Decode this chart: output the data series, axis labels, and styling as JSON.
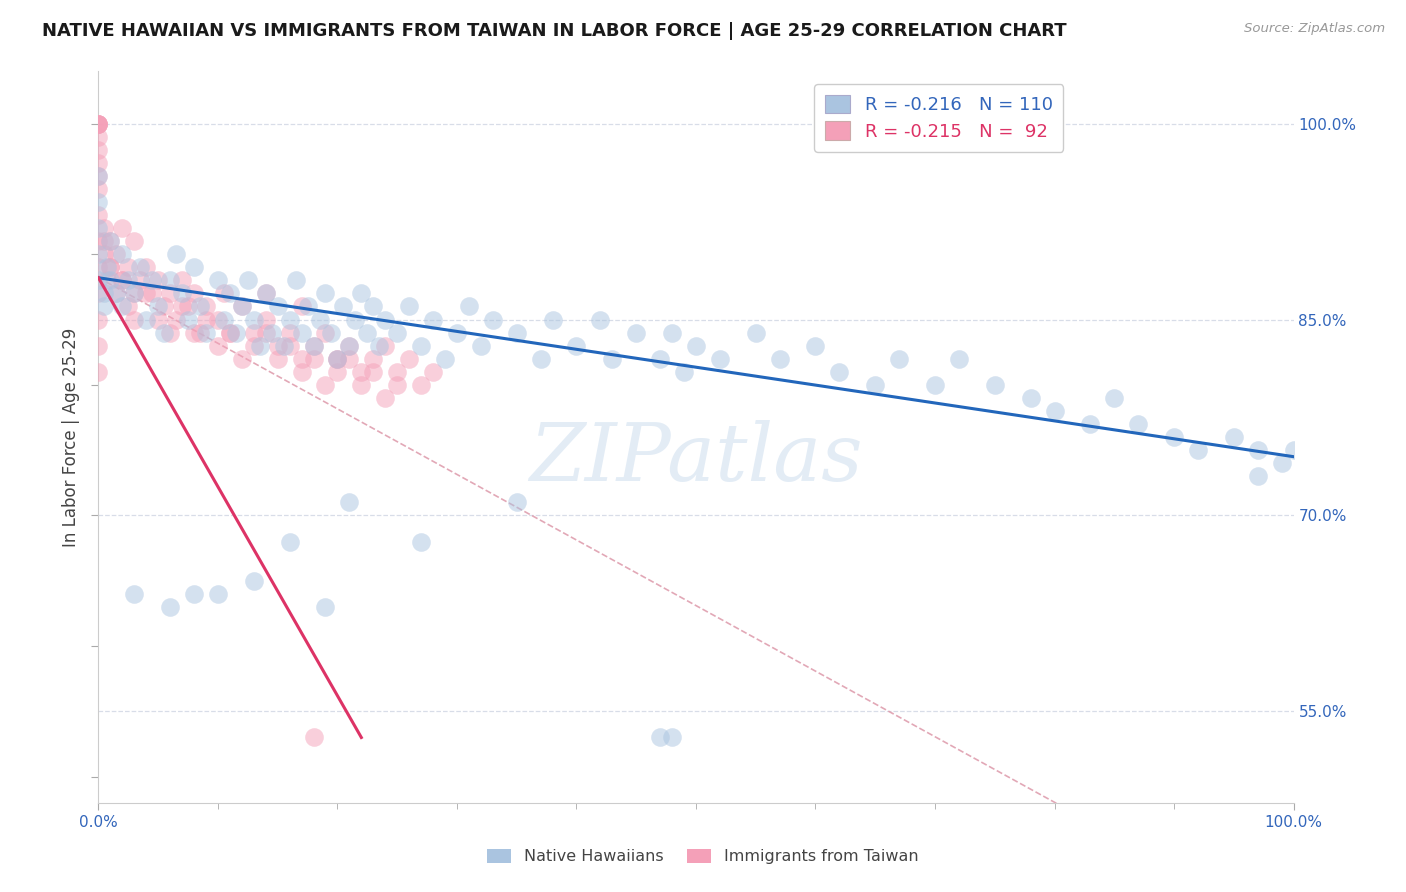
{
  "title": "NATIVE HAWAIIAN VS IMMIGRANTS FROM TAIWAN IN LABOR FORCE | AGE 25-29 CORRELATION CHART",
  "source": "Source: ZipAtlas.com",
  "ylabel": "In Labor Force | Age 25-29",
  "y_tick_labels_right": [
    "100.0%",
    "85.0%",
    "70.0%",
    "55.0%"
  ],
  "y_tick_values_right": [
    1.0,
    0.85,
    0.7,
    0.55
  ],
  "watermark_text": "ZIPatlas",
  "blue_color": "#aac4e0",
  "pink_color": "#f4a0b8",
  "blue_line_color": "#2266bb",
  "pink_line_color": "#dd3366",
  "dashed_line_color": "#dd99aa",
  "grid_color": "#d8dde8",
  "background_color": "#ffffff",
  "xlim": [
    0.0,
    1.0
  ],
  "ylim": [
    0.48,
    1.04
  ],
  "blue_scatter_x": [
    0.0,
    0.0,
    0.0,
    0.0,
    0.0,
    0.005,
    0.005,
    0.007,
    0.01,
    0.01,
    0.015,
    0.02,
    0.02,
    0.025,
    0.03,
    0.035,
    0.04,
    0.045,
    0.05,
    0.055,
    0.06,
    0.065,
    0.07,
    0.075,
    0.08,
    0.085,
    0.09,
    0.1,
    0.105,
    0.11,
    0.115,
    0.12,
    0.125,
    0.13,
    0.135,
    0.14,
    0.145,
    0.15,
    0.155,
    0.16,
    0.165,
    0.17,
    0.175,
    0.18,
    0.185,
    0.19,
    0.195,
    0.2,
    0.205,
    0.21,
    0.215,
    0.22,
    0.225,
    0.23,
    0.235,
    0.24,
    0.25,
    0.26,
    0.27,
    0.28,
    0.29,
    0.3,
    0.31,
    0.32,
    0.33,
    0.35,
    0.37,
    0.38,
    0.4,
    0.42,
    0.43,
    0.45,
    0.47,
    0.48,
    0.49,
    0.5,
    0.52,
    0.55,
    0.57,
    0.6,
    0.62,
    0.65,
    0.67,
    0.7,
    0.72,
    0.75,
    0.78,
    0.8,
    0.83,
    0.85,
    0.87,
    0.9,
    0.92,
    0.95,
    0.97,
    0.97,
    0.99,
    1.0,
    0.47,
    0.48,
    0.35,
    0.27,
    0.21,
    0.19,
    0.16,
    0.13,
    0.1,
    0.08,
    0.06,
    0.03
  ],
  "blue_scatter_y": [
    0.9,
    0.92,
    0.94,
    0.96,
    0.88,
    0.87,
    0.86,
    0.89,
    0.91,
    0.88,
    0.87,
    0.9,
    0.86,
    0.88,
    0.87,
    0.89,
    0.85,
    0.88,
    0.86,
    0.84,
    0.88,
    0.9,
    0.87,
    0.85,
    0.89,
    0.86,
    0.84,
    0.88,
    0.85,
    0.87,
    0.84,
    0.86,
    0.88,
    0.85,
    0.83,
    0.87,
    0.84,
    0.86,
    0.83,
    0.85,
    0.88,
    0.84,
    0.86,
    0.83,
    0.85,
    0.87,
    0.84,
    0.82,
    0.86,
    0.83,
    0.85,
    0.87,
    0.84,
    0.86,
    0.83,
    0.85,
    0.84,
    0.86,
    0.83,
    0.85,
    0.82,
    0.84,
    0.86,
    0.83,
    0.85,
    0.84,
    0.82,
    0.85,
    0.83,
    0.85,
    0.82,
    0.84,
    0.82,
    0.84,
    0.81,
    0.83,
    0.82,
    0.84,
    0.82,
    0.83,
    0.81,
    0.8,
    0.82,
    0.8,
    0.82,
    0.8,
    0.79,
    0.78,
    0.77,
    0.79,
    0.77,
    0.76,
    0.75,
    0.76,
    0.75,
    0.73,
    0.74,
    0.75,
    0.53,
    0.53,
    0.71,
    0.68,
    0.71,
    0.63,
    0.68,
    0.65,
    0.64,
    0.64,
    0.63,
    0.64
  ],
  "pink_scatter_x": [
    0.0,
    0.0,
    0.0,
    0.0,
    0.0,
    0.0,
    0.0,
    0.0,
    0.0,
    0.0,
    0.0,
    0.0,
    0.0,
    0.0,
    0.0,
    0.0,
    0.0,
    0.005,
    0.005,
    0.007,
    0.01,
    0.01,
    0.015,
    0.02,
    0.02,
    0.025,
    0.03,
    0.03,
    0.035,
    0.04,
    0.045,
    0.05,
    0.055,
    0.06,
    0.065,
    0.07,
    0.075,
    0.08,
    0.085,
    0.09,
    0.1,
    0.105,
    0.11,
    0.12,
    0.13,
    0.14,
    0.15,
    0.16,
    0.17,
    0.18,
    0.19,
    0.2,
    0.21,
    0.22,
    0.23,
    0.24,
    0.25,
    0.26,
    0.27,
    0.28,
    0.005,
    0.01,
    0.015,
    0.02,
    0.025,
    0.03,
    0.04,
    0.05,
    0.06,
    0.07,
    0.08,
    0.09,
    0.1,
    0.11,
    0.12,
    0.13,
    0.14,
    0.15,
    0.16,
    0.17,
    0.18,
    0.19,
    0.2,
    0.21,
    0.22,
    0.23,
    0.24,
    0.25,
    0.14,
    0.17,
    0.18,
    0.2
  ],
  "pink_scatter_y": [
    1.0,
    1.0,
    1.0,
    1.0,
    1.0,
    0.99,
    0.98,
    0.97,
    0.96,
    0.95,
    0.93,
    0.91,
    0.89,
    0.87,
    0.85,
    0.83,
    0.81,
    0.9,
    0.92,
    0.88,
    0.91,
    0.89,
    0.9,
    0.88,
    0.92,
    0.89,
    0.87,
    0.91,
    0.88,
    0.89,
    0.87,
    0.88,
    0.86,
    0.87,
    0.85,
    0.88,
    0.86,
    0.87,
    0.84,
    0.86,
    0.85,
    0.87,
    0.84,
    0.86,
    0.84,
    0.85,
    0.83,
    0.84,
    0.82,
    0.83,
    0.84,
    0.82,
    0.83,
    0.81,
    0.82,
    0.83,
    0.81,
    0.82,
    0.8,
    0.81,
    0.91,
    0.89,
    0.87,
    0.88,
    0.86,
    0.85,
    0.87,
    0.85,
    0.84,
    0.86,
    0.84,
    0.85,
    0.83,
    0.84,
    0.82,
    0.83,
    0.84,
    0.82,
    0.83,
    0.81,
    0.82,
    0.8,
    0.81,
    0.82,
    0.8,
    0.81,
    0.79,
    0.8,
    0.87,
    0.86,
    0.53,
    0.82
  ],
  "blue_trend_x": [
    0.0,
    1.0
  ],
  "blue_trend_y_start": 0.882,
  "blue_trend_y_end": 0.745,
  "pink_trend_x": [
    0.0,
    0.22
  ],
  "pink_trend_y_start": 0.882,
  "pink_trend_y_end": 0.53,
  "dashed_trend_x": [
    0.0,
    1.0
  ],
  "dashed_trend_y_start": 0.882,
  "dashed_trend_y_end": 0.38
}
